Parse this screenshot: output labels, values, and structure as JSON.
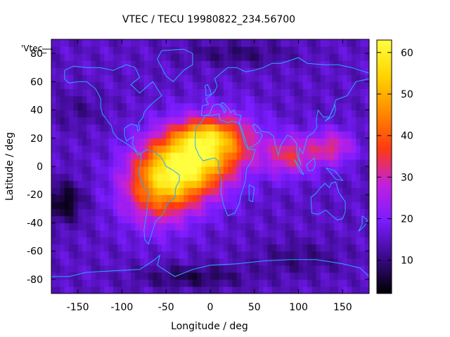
{
  "chart_data": {
    "type": "heatmap",
    "title": "VTEC / TECU 19980822_234.56700",
    "xlabel": "Longitude / deg",
    "ylabel": "Latitude / deg",
    "key_label": "'Vtec_",
    "xlim": [
      -180,
      180
    ],
    "ylim": [
      -90,
      90
    ],
    "x_ticks": [
      -150,
      -100,
      -50,
      0,
      50,
      100,
      150
    ],
    "y_ticks": [
      -80,
      -60,
      -40,
      -20,
      0,
      20,
      40,
      60,
      80
    ],
    "colorbar": {
      "range": [
        2,
        63
      ],
      "ticks": [
        10,
        20,
        30,
        40,
        50,
        60
      ],
      "palette": [
        "#000000",
        "#3a0a8a",
        "#7a1cff",
        "#c020e0",
        "#ff3a10",
        "#ff8a00",
        "#ffd400",
        "#ffff40"
      ]
    },
    "background_level": 15,
    "features": [
      {
        "name": "equatorial-anomaly-peak",
        "lon": -25,
        "lat": 2,
        "value": 60
      },
      {
        "name": "south-american-lobe",
        "lon": -60,
        "lat": -15,
        "value": 52
      },
      {
        "name": "african-lobe",
        "lon": 20,
        "lat": 15,
        "value": 47
      },
      {
        "name": "northern-crest",
        "lon": -10,
        "lat": 22,
        "value": 48
      },
      {
        "name": "indian-ocean-lobe",
        "lon": 85,
        "lat": 10,
        "value": 34
      },
      {
        "name": "west-pacific-lobe",
        "lon": 140,
        "lat": 15,
        "value": 32
      },
      {
        "name": "south-pacific-minimum",
        "lon": -165,
        "lat": -25,
        "value": 3
      },
      {
        "name": "polar-low-south",
        "lon": -20,
        "lat": -75,
        "value": 8
      },
      {
        "name": "polar-low-north",
        "lon": 30,
        "lat": 80,
        "value": 10
      }
    ],
    "grid": false,
    "overlay": "coastlines",
    "legend": "colorbar-right"
  }
}
